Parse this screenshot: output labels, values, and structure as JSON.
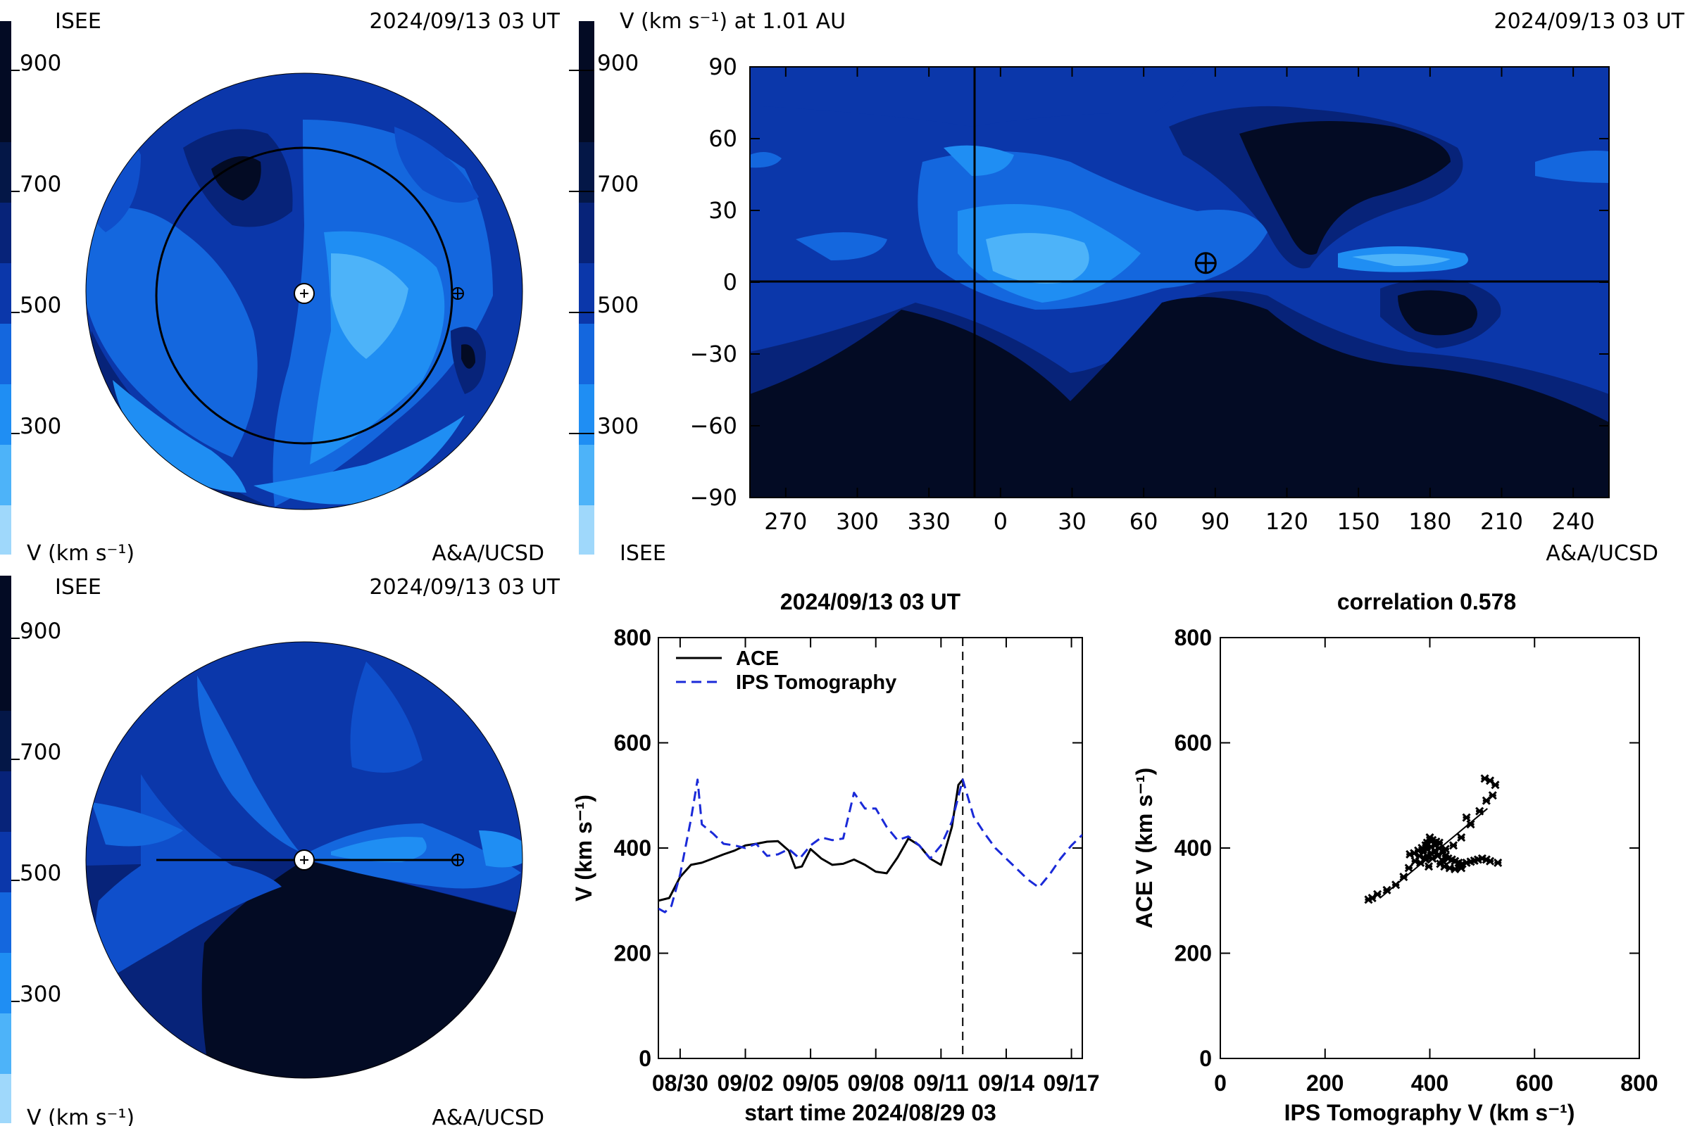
{
  "colorbar": {
    "ticks": [
      "900",
      "700",
      "500",
      "300"
    ],
    "tick_values": [
      900,
      700,
      500,
      300
    ],
    "range": [
      200,
      1000
    ],
    "colors": [
      "#9fd8fb",
      "#4db3f9",
      "#1f8ef3",
      "#1467de",
      "#0f4fcb",
      "#0b37aa",
      "#072379",
      "#041747",
      "#030b24"
    ]
  },
  "panel_tl": {
    "org": "ISEE",
    "date": "2024/09/13 03 UT",
    "unit": "V (km s⁻¹)",
    "credit": "A&A/UCSD"
  },
  "panel_tr": {
    "title": "V (km s⁻¹) at 1.01 AU",
    "date": "2024/09/13 03 UT",
    "org": "ISEE",
    "credit": "A&A/UCSD",
    "yticks": [
      "90",
      "60",
      "30",
      "0",
      "−30",
      "−60",
      "−90"
    ],
    "xticks": [
      "270",
      "300",
      "330",
      "0",
      "30",
      "60",
      "90",
      "120",
      "150",
      "180",
      "210",
      "240"
    ],
    "earth_lon": 86,
    "earth_lat": 8
  },
  "panel_bl": {
    "org": "ISEE",
    "date": "2024/09/13 03 UT",
    "unit": "V (km s⁻¹)",
    "credit": "A&A/UCSD"
  },
  "chart_data": [
    {
      "type": "line",
      "title": "2024/09/13 03 UT",
      "xlabel": "start time 2024/08/29 03",
      "ylabel": "V (km s⁻¹)",
      "ylim": [
        0,
        800
      ],
      "xlim": [
        0,
        19.5
      ],
      "yticks": [
        "0",
        "200",
        "400",
        "600",
        "800"
      ],
      "ytick_values": [
        0,
        200,
        400,
        600,
        800
      ],
      "xticks": [
        "08/30",
        "09/02",
        "09/05",
        "09/08",
        "09/11",
        "09/14",
        "09/17"
      ],
      "xtick_values": [
        1,
        4,
        7,
        10,
        13,
        16,
        19
      ],
      "marker_x": 14,
      "legend": "top-left",
      "series": [
        {
          "name": "ACE",
          "color": "#000000",
          "dash": "solid",
          "x": [
            0,
            0.5,
            1,
            1.5,
            2,
            2.5,
            3,
            3.5,
            4,
            4.5,
            5,
            5.5,
            6,
            6.3,
            6.6,
            7,
            7.5,
            8,
            8.5,
            9,
            9.5,
            10,
            10.5,
            11,
            11.5,
            12,
            12.5,
            13,
            13.5,
            13.8,
            14
          ],
          "y": [
            300,
            305,
            345,
            368,
            372,
            380,
            388,
            395,
            405,
            408,
            412,
            413,
            395,
            362,
            365,
            398,
            380,
            368,
            370,
            378,
            368,
            355,
            352,
            382,
            418,
            405,
            380,
            368,
            440,
            520,
            530
          ]
        },
        {
          "name": "IPS Tomography",
          "color": "#1a2ad8",
          "dash": "dashed",
          "x": [
            0,
            0.3,
            0.6,
            1,
            1.5,
            1.8,
            2,
            2.5,
            3,
            3.5,
            4,
            4.5,
            5,
            5.5,
            6,
            6.5,
            7,
            7.5,
            8,
            8.5,
            9,
            9.5,
            10,
            10.5,
            11,
            11.5,
            12,
            12.5,
            13,
            13.5,
            14,
            14.5,
            15,
            15.5,
            16,
            16.5,
            17,
            17.5,
            18,
            18.5,
            19,
            19.5
          ],
          "y": [
            285,
            278,
            290,
            350,
            455,
            530,
            445,
            428,
            408,
            405,
            400,
            408,
            385,
            388,
            398,
            380,
            405,
            420,
            415,
            418,
            505,
            475,
            475,
            440,
            415,
            422,
            405,
            380,
            405,
            450,
            530,
            460,
            428,
            400,
            380,
            360,
            340,
            325,
            350,
            380,
            405,
            425
          ]
        }
      ]
    },
    {
      "type": "scatter",
      "title": "correlation 0.578",
      "xlabel": "IPS Tomography V (km s⁻¹)",
      "ylabel": "ACE V (km s⁻¹)",
      "xlim": [
        0,
        800
      ],
      "ylim": [
        0,
        800
      ],
      "xticks": [
        "0",
        "200",
        "400",
        "600",
        "800"
      ],
      "xtick_values": [
        0,
        200,
        400,
        600,
        800
      ],
      "yticks": [
        "0",
        "200",
        "400",
        "600",
        "800"
      ],
      "ytick_values": [
        0,
        200,
        400,
        600,
        800
      ],
      "fit_line": [
        [
          305,
          305
        ],
        [
          510,
          475
        ]
      ],
      "points": [
        [
          283,
          302
        ],
        [
          290,
          305
        ],
        [
          300,
          312
        ],
        [
          318,
          320
        ],
        [
          335,
          330
        ],
        [
          350,
          345
        ],
        [
          360,
          362
        ],
        [
          372,
          375
        ],
        [
          380,
          385
        ],
        [
          388,
          392
        ],
        [
          395,
          398
        ],
        [
          402,
          402
        ],
        [
          410,
          405
        ],
        [
          418,
          400
        ],
        [
          425,
          392
        ],
        [
          430,
          385
        ],
        [
          435,
          380
        ],
        [
          442,
          378
        ],
        [
          448,
          375
        ],
        [
          455,
          372
        ],
        [
          462,
          370
        ],
        [
          470,
          372
        ],
        [
          478,
          374
        ],
        [
          485,
          376
        ],
        [
          492,
          378
        ],
        [
          500,
          380
        ],
        [
          508,
          378
        ],
        [
          515,
          375
        ],
        [
          530,
          372
        ],
        [
          395,
          410
        ],
        [
          405,
          415
        ],
        [
          412,
          412
        ],
        [
          418,
          410
        ],
        [
          400,
          420
        ],
        [
          392,
          405
        ],
        [
          385,
          400
        ],
        [
          378,
          395
        ],
        [
          370,
          390
        ],
        [
          362,
          388
        ],
        [
          415,
          385
        ],
        [
          425,
          375
        ],
        [
          405,
          380
        ],
        [
          395,
          385
        ],
        [
          420,
          370
        ],
        [
          428,
          365
        ],
        [
          438,
          362
        ],
        [
          448,
          360
        ],
        [
          460,
          362
        ],
        [
          410,
          395
        ],
        [
          402,
          390
        ],
        [
          392,
          378
        ],
        [
          382,
          372
        ],
        [
          445,
          405
        ],
        [
          460,
          420
        ],
        [
          478,
          445
        ],
        [
          495,
          470
        ],
        [
          508,
          490
        ],
        [
          520,
          500
        ],
        [
          525,
          520
        ],
        [
          515,
          528
        ],
        [
          505,
          532
        ],
        [
          470,
          458
        ],
        [
          430,
          398
        ],
        [
          398,
          365
        ]
      ]
    }
  ]
}
